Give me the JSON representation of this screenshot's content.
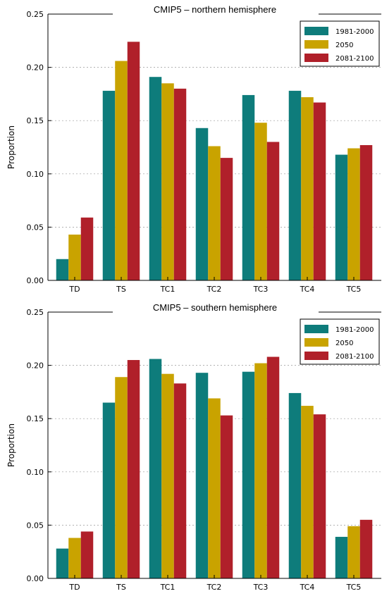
{
  "chart_data": [
    {
      "type": "bar",
      "title": "CMIP5 – northern hemisphere",
      "xlabel": "",
      "ylabel": "Proportion",
      "ylim": [
        0,
        0.25
      ],
      "yticks": [
        "0.00",
        "0.05",
        "0.10",
        "0.15",
        "0.20",
        "0.25"
      ],
      "categories": [
        "TD",
        "TS",
        "TC1",
        "TC2",
        "TC3",
        "TC4",
        "TC5"
      ],
      "grid": "horizontal dotted",
      "legend_position": "top-right",
      "series": [
        {
          "name": "1981-2000",
          "color": "#0e7c7b",
          "values": [
            0.02,
            0.178,
            0.191,
            0.143,
            0.174,
            0.178,
            0.118
          ]
        },
        {
          "name": "2050",
          "color": "#c9a300",
          "values": [
            0.043,
            0.206,
            0.185,
            0.126,
            0.148,
            0.172,
            0.124
          ]
        },
        {
          "name": "2081-2100",
          "color": "#b0202a",
          "values": [
            0.059,
            0.224,
            0.18,
            0.115,
            0.13,
            0.167,
            0.127
          ]
        }
      ]
    },
    {
      "type": "bar",
      "title": "CMIP5 – southern hemisphere",
      "xlabel": "",
      "ylabel": "Proportion",
      "ylim": [
        0,
        0.25
      ],
      "yticks": [
        "0.00",
        "0.05",
        "0.10",
        "0.15",
        "0.20",
        "0.25"
      ],
      "categories": [
        "TD",
        "TS",
        "TC1",
        "TC2",
        "TC3",
        "TC4",
        "TC5"
      ],
      "grid": "horizontal dotted",
      "legend_position": "top-right",
      "series": [
        {
          "name": "1981-2000",
          "color": "#0e7c7b",
          "values": [
            0.028,
            0.165,
            0.206,
            0.193,
            0.194,
            0.174,
            0.039
          ]
        },
        {
          "name": "2050",
          "color": "#c9a300",
          "values": [
            0.038,
            0.189,
            0.192,
            0.169,
            0.202,
            0.162,
            0.049
          ]
        },
        {
          "name": "2081-2100",
          "color": "#b0202a",
          "values": [
            0.044,
            0.205,
            0.183,
            0.153,
            0.208,
            0.154,
            0.055
          ]
        }
      ]
    }
  ]
}
